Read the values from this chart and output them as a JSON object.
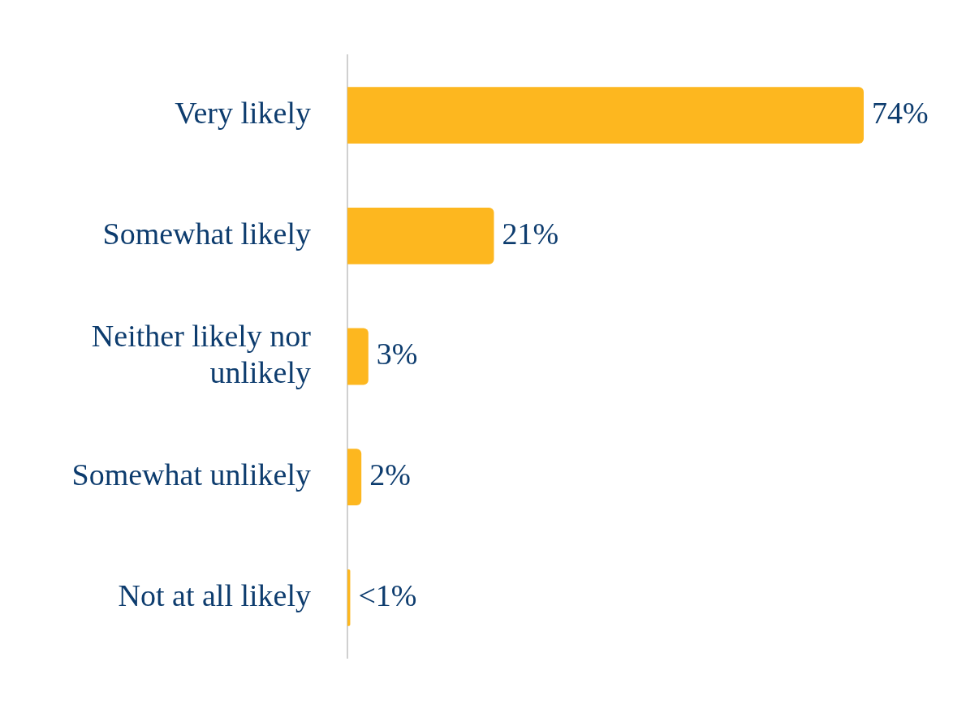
{
  "chart_data": {
    "type": "bar",
    "orientation": "horizontal",
    "categories": [
      "Very likely",
      "Somewhat likely",
      "Neither likely nor unlikely",
      "Somewhat unlikely",
      "Not at all likely"
    ],
    "values": [
      74,
      21,
      3,
      2,
      0.4
    ],
    "value_labels": [
      "74%",
      "21%",
      "3%",
      "2%",
      "<1%"
    ],
    "color": "#fdb71f"
  }
}
